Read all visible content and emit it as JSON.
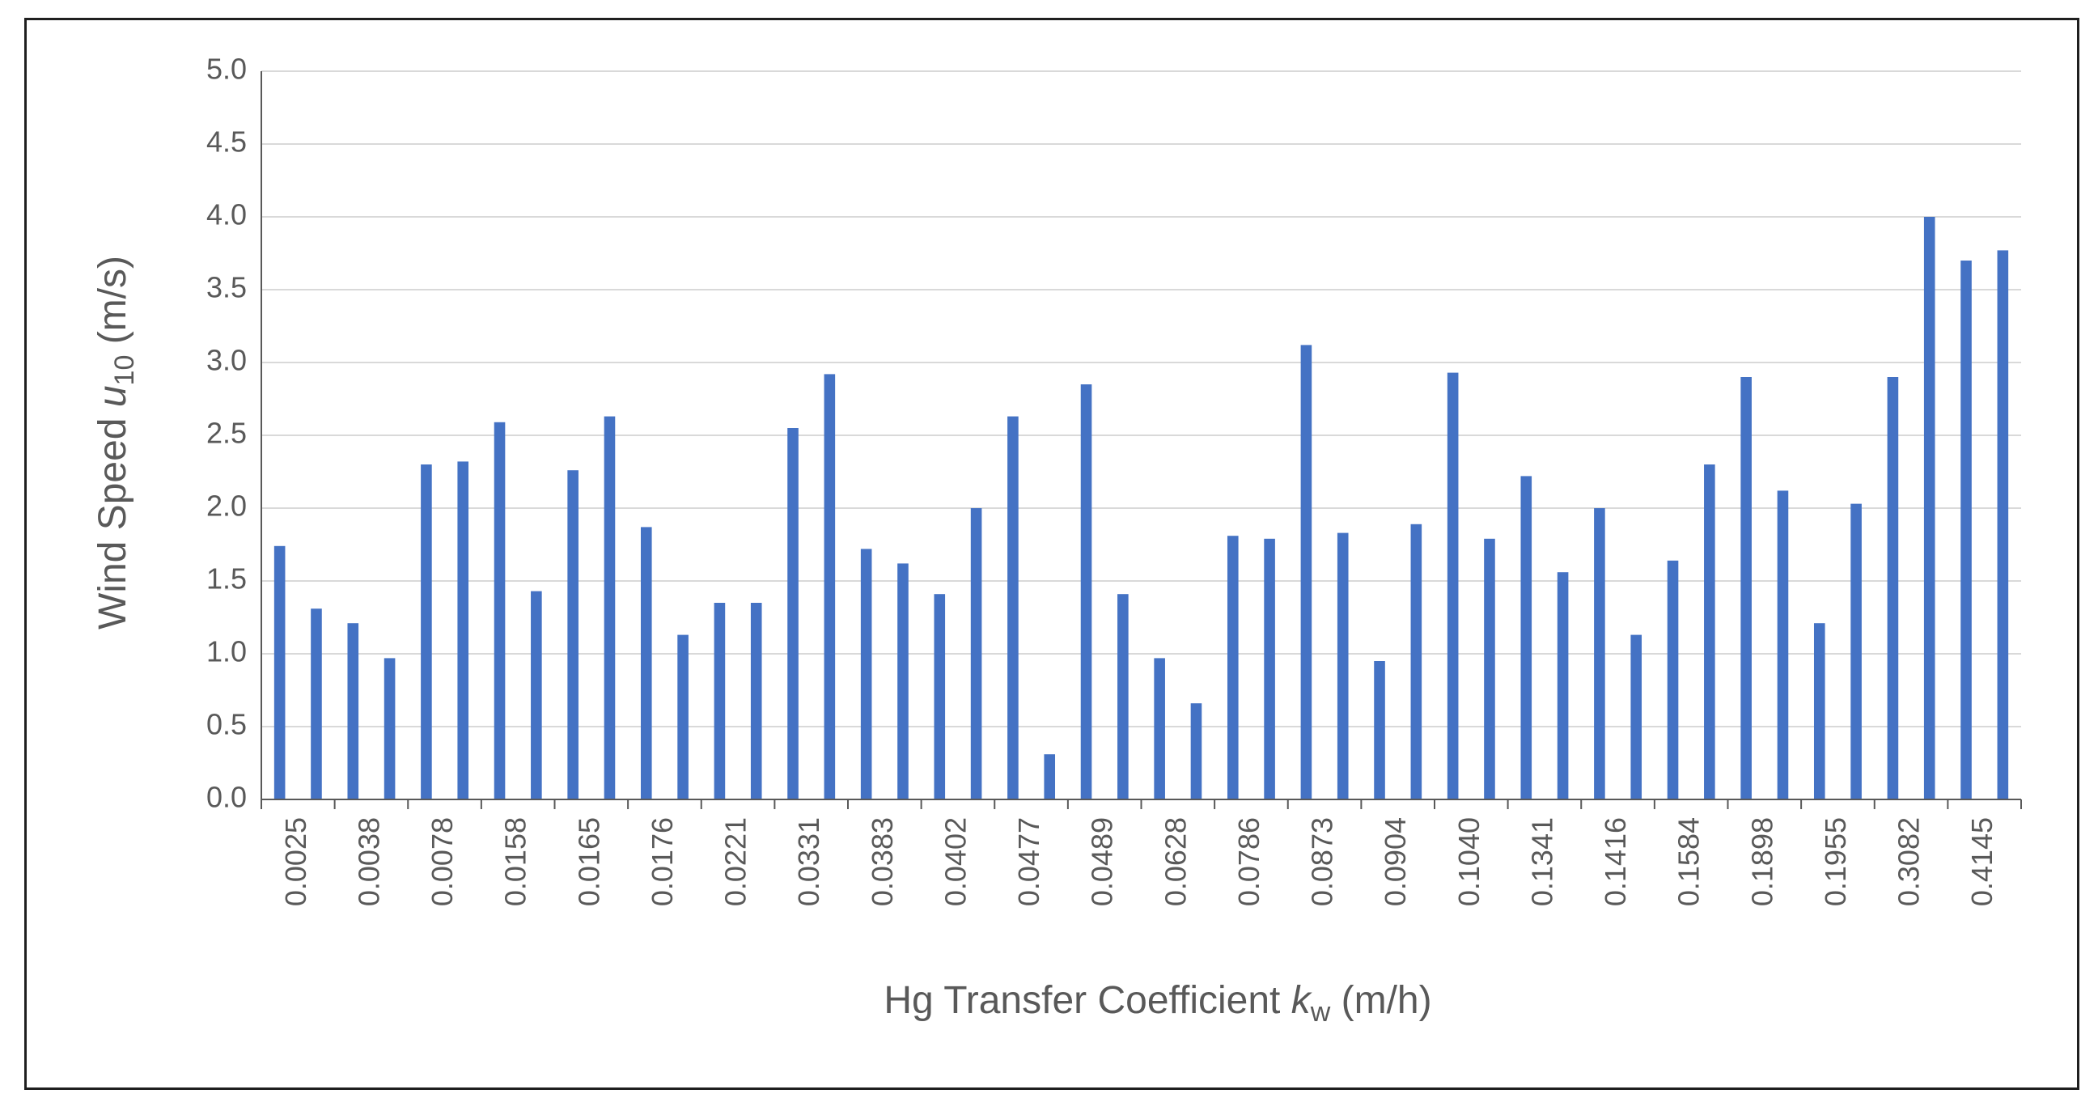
{
  "chart_data": {
    "type": "bar",
    "xlabel": "Hg Transfer Coefficient k_w (m/h)",
    "xlabel_parts": {
      "main": "Hg Transfer Coefficient ",
      "var": "k",
      "sub": "w",
      "unit": " (m/h)"
    },
    "ylabel": "Wind Speed u_10 (m/s)",
    "ylabel_parts": {
      "main": "Wind Speed ",
      "var": "u",
      "sub": "10",
      "unit": " (m/s)"
    },
    "ylim": [
      0,
      5
    ],
    "yticks": [
      "0.0",
      "0.5",
      "1.0",
      "1.5",
      "2.0",
      "2.5",
      "3.0",
      "3.5",
      "4.0",
      "4.5",
      "5.0"
    ],
    "grid": true,
    "legend": "none",
    "bar_color": "#4472c4",
    "tick_labels": [
      "0.0025",
      "0.0038",
      "0.0078",
      "0.0158",
      "0.0165",
      "0.0176",
      "0.0221",
      "0.0331",
      "0.0383",
      "0.0402",
      "0.0477",
      "0.0489",
      "0.0628",
      "0.0786",
      "0.0873",
      "0.0904",
      "0.1040",
      "0.1341",
      "0.1416",
      "0.1584",
      "0.1898",
      "0.1955",
      "0.3082",
      "0.4145"
    ],
    "values": [
      1.74,
      1.31,
      1.21,
      0.97,
      2.3,
      2.32,
      2.59,
      1.43,
      2.26,
      2.63,
      1.87,
      1.13,
      1.35,
      1.35,
      2.55,
      2.92,
      1.72,
      1.62,
      1.41,
      2.0,
      2.63,
      0.31,
      2.85,
      1.41,
      0.97,
      0.66,
      1.81,
      1.79,
      3.12,
      1.83,
      0.95,
      1.89,
      2.93,
      1.79,
      2.22,
      1.56,
      2.0,
      1.13,
      1.64,
      2.3,
      2.9,
      2.12,
      1.21,
      2.03,
      2.9,
      4.0,
      3.7,
      3.77
    ]
  }
}
